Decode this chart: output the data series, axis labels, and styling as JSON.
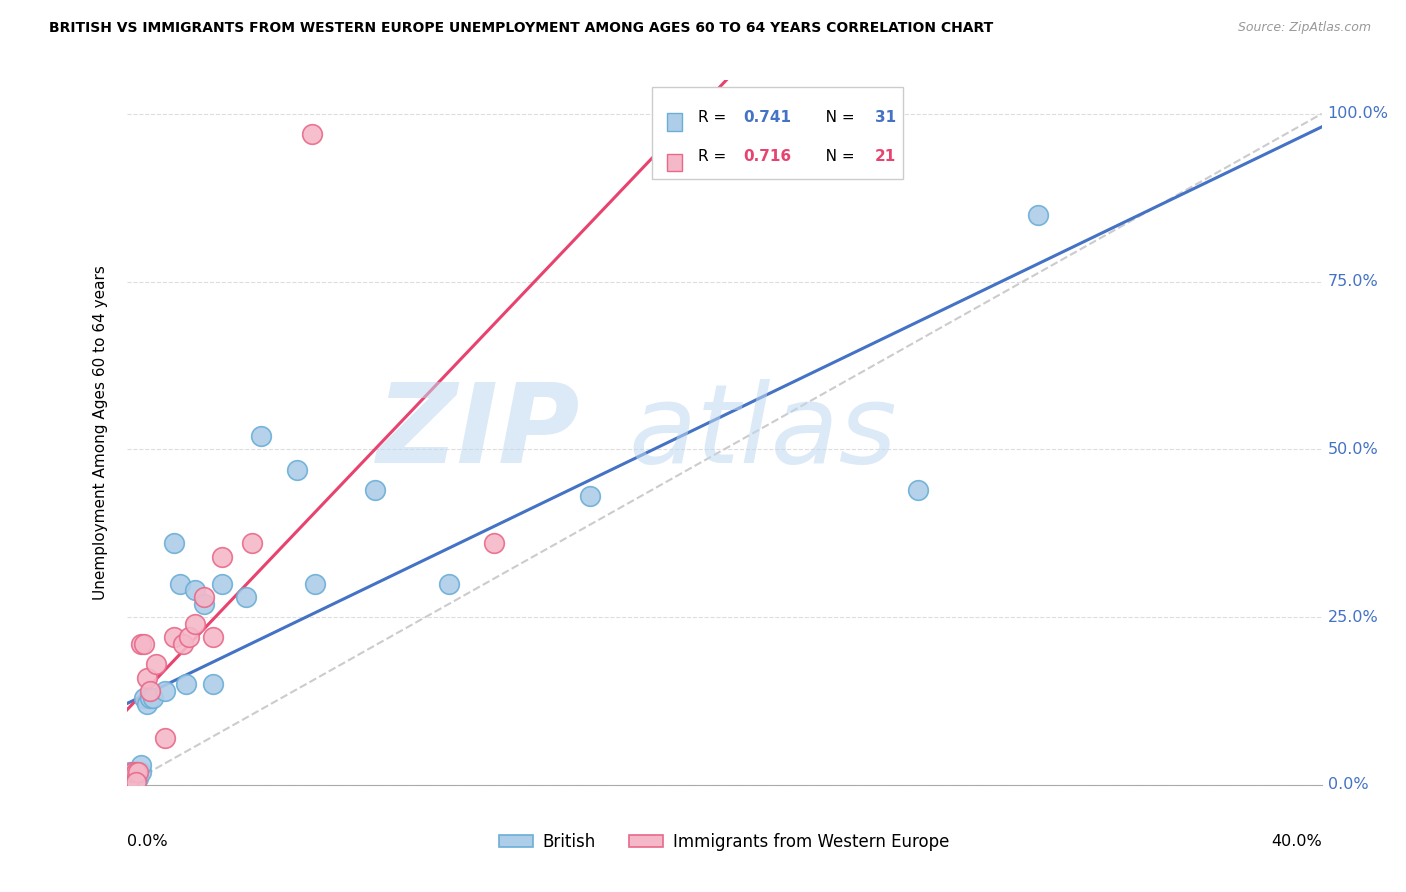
{
  "title": "BRITISH VS IMMIGRANTS FROM WESTERN EUROPE UNEMPLOYMENT AMONG AGES 60 TO 64 YEARS CORRELATION CHART",
  "source": "Source: ZipAtlas.com",
  "ylabel": "Unemployment Among Ages 60 to 64 years",
  "ytick_labels": [
    "0.0%",
    "25.0%",
    "50.0%",
    "75.0%",
    "100.0%"
  ],
  "ytick_values": [
    0.0,
    0.25,
    0.5,
    0.75,
    1.0
  ],
  "xmin": 0.0,
  "xmax": 0.4,
  "ymin": 0.0,
  "ymax": 1.05,
  "watermark_zip": "ZIP",
  "watermark_atlas": "atlas",
  "legend_british_r": "0.741",
  "legend_british_n": "31",
  "legend_immigrant_r": "0.716",
  "legend_immigrant_n": "21",
  "british_color": "#aecde8",
  "british_edge_color": "#6baed6",
  "immigrant_color": "#f4b8c8",
  "immigrant_edge_color": "#e8698a",
  "trend_blue": "#4472c4",
  "trend_pink": "#e8436e",
  "ref_line_color": "#cccccc",
  "background_color": "#ffffff",
  "grid_color": "#dddddd",
  "british_x": [
    0.001,
    0.001,
    0.002,
    0.002,
    0.003,
    0.003,
    0.004,
    0.004,
    0.005,
    0.005,
    0.006,
    0.007,
    0.008,
    0.009,
    0.013,
    0.016,
    0.018,
    0.02,
    0.023,
    0.026,
    0.029,
    0.032,
    0.04,
    0.045,
    0.057,
    0.063,
    0.083,
    0.108,
    0.155,
    0.265,
    0.305
  ],
  "british_y": [
    0.01,
    0.02,
    0.01,
    0.02,
    0.01,
    0.02,
    0.01,
    0.02,
    0.02,
    0.03,
    0.13,
    0.12,
    0.13,
    0.13,
    0.14,
    0.36,
    0.3,
    0.15,
    0.29,
    0.27,
    0.15,
    0.3,
    0.28,
    0.52,
    0.47,
    0.3,
    0.44,
    0.3,
    0.43,
    0.44,
    0.85
  ],
  "immigrant_x": [
    0.001,
    0.002,
    0.003,
    0.004,
    0.005,
    0.006,
    0.007,
    0.008,
    0.01,
    0.013,
    0.016,
    0.019,
    0.021,
    0.023,
    0.026,
    0.029,
    0.032,
    0.042,
    0.062,
    0.123,
    0.003
  ],
  "immigrant_y": [
    0.01,
    0.02,
    0.02,
    0.02,
    0.21,
    0.21,
    0.16,
    0.14,
    0.18,
    0.07,
    0.22,
    0.21,
    0.22,
    0.24,
    0.28,
    0.22,
    0.34,
    0.36,
    0.97,
    0.36,
    0.005
  ]
}
